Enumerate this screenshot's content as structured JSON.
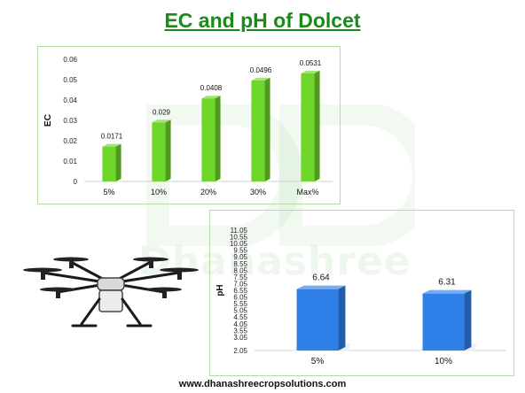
{
  "title": "EC and pH of Dolcet",
  "watermark": "Dhanashree",
  "footer": "www.dhanashreecropsolutions.com",
  "colors": {
    "title": "#1a8a1a",
    "ec_bar": "#6fd62a",
    "ph_bar": "#2f7fe8",
    "panel_border": "#b8dca0"
  },
  "chart_data": [
    {
      "type": "bar",
      "categories": [
        "5%",
        "10%",
        "20%",
        "30%",
        "Max%"
      ],
      "values": [
        0.0171,
        0.029,
        0.0408,
        0.0496,
        0.0531
      ],
      "data_labels": [
        "0.0171",
        "0.029",
        "0.0408",
        "0.0496",
        "0.0531"
      ],
      "ylabel": "EC",
      "ylim": [
        0,
        0.06
      ],
      "yticks": [
        "0",
        "0.01",
        "0.02",
        "0.03",
        "0.04",
        "0.05",
        "0.06"
      ],
      "grid": false
    },
    {
      "type": "bar",
      "categories": [
        "5%",
        "10%"
      ],
      "values": [
        6.64,
        6.31
      ],
      "data_labels": [
        "6.64",
        "6.31"
      ],
      "ylabel": "pH",
      "ylim": [
        2.05,
        11.05
      ],
      "yticks": [
        "2.05",
        "3.05",
        "3.55",
        "4.05",
        "4.55",
        "5.05",
        "5.55",
        "6.05",
        "6.55",
        "7.05",
        "7.55",
        "8.05",
        "8.55",
        "9.05",
        "9.55",
        "10.05",
        "10.55",
        "11.05"
      ],
      "grid": false
    }
  ]
}
